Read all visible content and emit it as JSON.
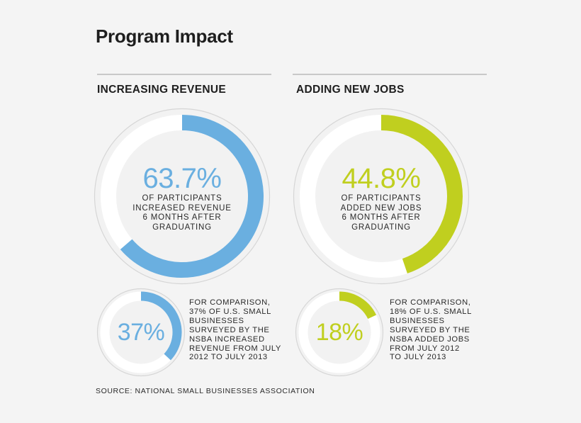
{
  "title": "Program Impact",
  "colors": {
    "revenue": "#6aafe0",
    "jobs": "#c0cf1f",
    "track": "#ffffff",
    "outline": "#d6d6d6"
  },
  "panels": [
    {
      "label": "INCREASING REVENUE",
      "value_text": "63.7%",
      "caption": "OF PARTICIPANTS\nINCREASED REVENUE\n6 MONTHS AFTER\nGRADUATING",
      "comparison_value_text": "37%",
      "comparison_text": "FOR COMPARISON,\n37% OF U.S. SMALL\nBUSINESSES\nSURVEYED BY THE\nNSBA INCREASED\nREVENUE FROM JULY\n2012 TO JULY 2013"
    },
    {
      "label": "ADDING NEW JOBS",
      "value_text": "44.8%",
      "caption": "OF PARTICIPANTS\nADDED NEW JOBS\n6 MONTHS AFTER\nGRADUATING",
      "comparison_value_text": "18%",
      "comparison_text": "FOR COMPARISON,\n18% OF U.S. SMALL\nBUSINESSES\nSURVEYED BY THE\nNSBA ADDED JOBS\nFROM JULY 2012\nTO JULY 2013"
    }
  ],
  "source": "SOURCE: NATIONAL SMALL BUSINESSES ASSOCIATION",
  "chart_data": [
    {
      "type": "pie",
      "categories": [
        "Program participants",
        "U.S. small businesses (NSBA)"
      ],
      "values": [
        63.7,
        37
      ],
      "unit": "%"
    },
    {
      "type": "pie",
      "categories": [
        "Program participants",
        "U.S. small businesses (NSBA)"
      ],
      "values": [
        44.8,
        18
      ],
      "unit": "%"
    }
  ]
}
